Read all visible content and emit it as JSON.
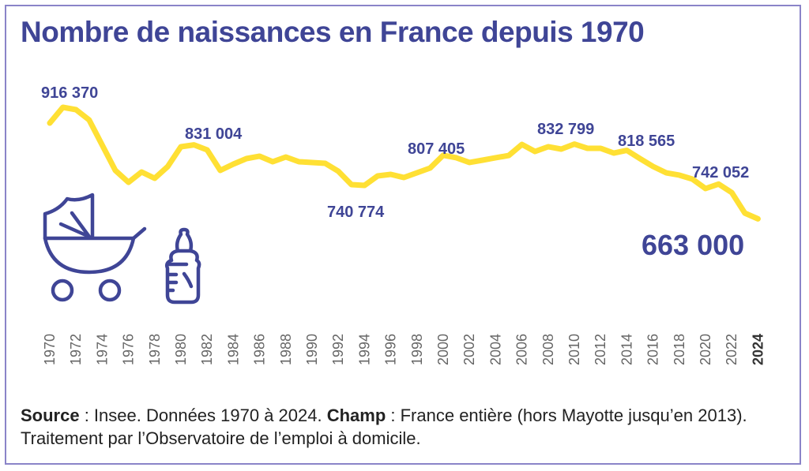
{
  "title": "Nombre de naissances en France depuis 1970",
  "chart_data": {
    "type": "line",
    "title": "Nombre de naissances en France depuis 1970",
    "xlabel": "",
    "ylabel": "",
    "x": [
      1970,
      1971,
      1972,
      1973,
      1974,
      1975,
      1976,
      1977,
      1978,
      1979,
      1980,
      1981,
      1982,
      1983,
      1984,
      1985,
      1986,
      1987,
      1988,
      1989,
      1990,
      1991,
      1992,
      1993,
      1994,
      1995,
      1996,
      1997,
      1998,
      1999,
      2000,
      2001,
      2002,
      2003,
      2004,
      2005,
      2006,
      2007,
      2008,
      2009,
      2010,
      2011,
      2012,
      2013,
      2014,
      2015,
      2016,
      2017,
      2018,
      2019,
      2020,
      2021,
      2022,
      2023,
      2024
    ],
    "values": [
      880500,
      916370,
      911000,
      887700,
      830400,
      773000,
      746000,
      769400,
      755100,
      782000,
      826800,
      831004,
      819600,
      773000,
      787300,
      799900,
      805300,
      792700,
      803500,
      792700,
      791000,
      789100,
      771200,
      740774,
      739000,
      760500,
      764000,
      756900,
      767600,
      778400,
      807405,
      801700,
      791000,
      796300,
      801700,
      807000,
      832100,
      816000,
      826800,
      821400,
      832799,
      823200,
      823200,
      812400,
      818565,
      799900,
      782000,
      767600,
      762300,
      753300,
      731800,
      742052,
      722800,
      676000,
      663000
    ],
    "series_color": "#ffe034",
    "ylim": [
      640000,
      930000
    ],
    "x_ticks": [
      "1970",
      "1972",
      "1974",
      "1976",
      "1978",
      "1980",
      "1982",
      "1984",
      "1986",
      "1988",
      "1990",
      "1992",
      "1994",
      "1996",
      "1998",
      "2000",
      "2002",
      "2004",
      "2006",
      "2008",
      "2010",
      "2012",
      "2014",
      "2016",
      "2018",
      "2020",
      "2022",
      "2024"
    ],
    "annotations": [
      {
        "year": 1971,
        "text": "916 370"
      },
      {
        "year": 1981,
        "text": "831 004"
      },
      {
        "year": 1993,
        "text": "740 774"
      },
      {
        "year": 2000,
        "text": "807 405"
      },
      {
        "year": 2010,
        "text": "832 799"
      },
      {
        "year": 2014,
        "text": "818 565"
      },
      {
        "year": 2021,
        "text": "742 052"
      },
      {
        "year": 2024,
        "text": "663 000"
      }
    ],
    "grid": false
  },
  "icons": [
    "stroller-icon",
    "baby-bottle-icon"
  ],
  "source": {
    "source_label": "Source",
    "source_text": " : Insee. Données 1970 à 2024. ",
    "champ_label": "Champ",
    "champ_text": " : France entière (hors Mayotte jusqu’en 2013). Traitement par l’Observatoire de l’emploi à domicile."
  }
}
